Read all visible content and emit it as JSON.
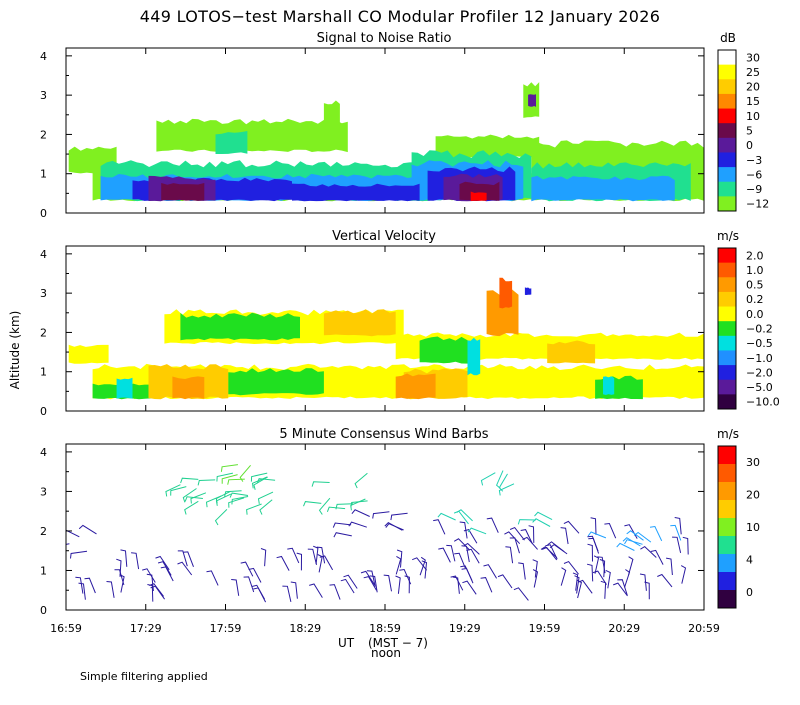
{
  "chart_data": {
    "title": "449 LOTOS−test Marshall CO Modular Profiler 12 January 2026",
    "ylabel": "Altitude (km)",
    "xlabel": "UT",
    "xlabel_local": "(MST − 7)",
    "noon_label": "noon",
    "footnote": "Simple filtering applied",
    "x_ticks": [
      "16:59",
      "17:29",
      "17:59",
      "18:29",
      "18:59",
      "19:29",
      "19:59",
      "20:29",
      "20:59"
    ],
    "x_range_hours": [
      16.983,
      20.983
    ],
    "y_ticks": [
      "0",
      "1",
      "2",
      "3",
      "4"
    ],
    "y_range_km": [
      0,
      4.2
    ],
    "panels": [
      {
        "id": "snr",
        "type": "heatmap",
        "title": "Signal to Noise Ratio",
        "unit": "dB",
        "colorbar_labels": [
          "30",
          "25",
          "20",
          "15",
          "10",
          "5",
          "0",
          "−3",
          "−6",
          "−9",
          "−12"
        ],
        "colorbar_colors": [
          "#ffffff",
          "#ffff00",
          "#ffcc00",
          "#ff8800",
          "#ff0000",
          "#6a0a4a",
          "#5a1a9a",
          "#2020e0",
          "#1fa0ff",
          "#20e090",
          "#80f020"
        ],
        "levels": [
          {
            "color": "#80f020",
            "regions": [
              {
                "x0": 17.0,
                "x1": 17.3,
                "y0": 1.0,
                "y1": 1.7
              },
              {
                "x0": 17.15,
                "x1": 20.98,
                "y0": 0.3,
                "y1": 1.1
              },
              {
                "x0": 17.55,
                "x1": 18.75,
                "y0": 1.55,
                "y1": 2.4
              },
              {
                "x0": 19.3,
                "x1": 19.95,
                "y0": 1.4,
                "y1": 2.0
              },
              {
                "x0": 19.9,
                "x1": 20.98,
                "y0": 0.8,
                "y1": 1.85
              },
              {
                "x0": 19.85,
                "x1": 19.95,
                "y0": 2.4,
                "y1": 3.4
              },
              {
                "x0": 18.6,
                "x1": 18.7,
                "y0": 2.1,
                "y1": 2.9
              }
            ]
          },
          {
            "color": "#20e090",
            "regions": [
              {
                "x0": 17.2,
                "x1": 19.25,
                "y0": 0.3,
                "y1": 1.35
              },
              {
                "x0": 19.15,
                "x1": 19.9,
                "y0": 0.3,
                "y1": 1.6
              },
              {
                "x0": 19.9,
                "x1": 20.9,
                "y0": 0.3,
                "y1": 1.3
              },
              {
                "x0": 17.92,
                "x1": 18.12,
                "y0": 1.5,
                "y1": 2.1
              }
            ]
          },
          {
            "color": "#1fa0ff",
            "regions": [
              {
                "x0": 17.2,
                "x1": 19.2,
                "y0": 0.3,
                "y1": 1.0
              },
              {
                "x0": 19.15,
                "x1": 19.85,
                "y0": 0.3,
                "y1": 1.35
              },
              {
                "x0": 19.9,
                "x1": 20.8,
                "y0": 0.3,
                "y1": 0.95
              }
            ]
          },
          {
            "color": "#2020e0",
            "regions": [
              {
                "x0": 17.4,
                "x1": 18.4,
                "y0": 0.3,
                "y1": 0.9
              },
              {
                "x0": 18.4,
                "x1": 19.2,
                "y0": 0.3,
                "y1": 0.75
              },
              {
                "x0": 19.25,
                "x1": 19.8,
                "y0": 0.3,
                "y1": 1.2
              }
            ]
          },
          {
            "color": "#5a1a9a",
            "regions": [
              {
                "x0": 17.5,
                "x1": 17.92,
                "y0": 0.3,
                "y1": 0.95
              },
              {
                "x0": 19.35,
                "x1": 19.72,
                "y0": 0.3,
                "y1": 1.0
              },
              {
                "x0": 19.88,
                "x1": 19.93,
                "y0": 2.7,
                "y1": 3.05
              }
            ]
          },
          {
            "color": "#6a0a4a",
            "regions": [
              {
                "x0": 17.58,
                "x1": 17.85,
                "y0": 0.3,
                "y1": 0.8
              },
              {
                "x0": 19.45,
                "x1": 19.7,
                "y0": 0.3,
                "y1": 0.8
              }
            ]
          },
          {
            "color": "#ff0000",
            "regions": [
              {
                "x0": 19.52,
                "x1": 19.62,
                "y0": 0.3,
                "y1": 0.55
              }
            ]
          }
        ]
      },
      {
        "id": "vv",
        "type": "heatmap",
        "title": "Vertical Velocity",
        "unit": "m/s",
        "colorbar_labels": [
          "2.0",
          "1.0",
          "0.5",
          "0.2",
          "0.0",
          "−0.2",
          "−0.5",
          "−1.0",
          "−2.0",
          "−5.0",
          "−10.0"
        ],
        "colorbar_colors": [
          "#ff0000",
          "#ff5a00",
          "#ff9a00",
          "#ffcc00",
          "#ffff00",
          "#20e020",
          "#00e0e0",
          "#2090ff",
          "#2020e0",
          "#5a1a9a",
          "#300040"
        ],
        "levels": [
          {
            "color": "#ffff00",
            "regions": [
              {
                "x0": 17.0,
                "x1": 17.25,
                "y0": 1.2,
                "y1": 1.7
              },
              {
                "x0": 17.15,
                "x1": 20.98,
                "y0": 0.3,
                "y1": 1.2
              },
              {
                "x0": 17.6,
                "x1": 19.1,
                "y0": 1.7,
                "y1": 2.6
              },
              {
                "x0": 19.05,
                "x1": 20.98,
                "y0": 1.3,
                "y1": 2.0
              }
            ]
          },
          {
            "color": "#20e020",
            "regions": [
              {
                "x0": 17.15,
                "x1": 17.55,
                "y0": 0.3,
                "y1": 0.7
              },
              {
                "x0": 18.0,
                "x1": 18.6,
                "y0": 0.4,
                "y1": 1.1
              },
              {
                "x0": 17.7,
                "x1": 18.45,
                "y0": 1.8,
                "y1": 2.5
              },
              {
                "x0": 20.3,
                "x1": 20.6,
                "y0": 0.3,
                "y1": 0.9
              },
              {
                "x0": 19.2,
                "x1": 19.5,
                "y0": 1.2,
                "y1": 1.9
              }
            ]
          },
          {
            "color": "#00e0e0",
            "regions": [
              {
                "x0": 17.3,
                "x1": 17.4,
                "y0": 0.3,
                "y1": 0.9
              },
              {
                "x0": 19.5,
                "x1": 19.58,
                "y0": 0.9,
                "y1": 1.9
              },
              {
                "x0": 20.35,
                "x1": 20.42,
                "y0": 0.4,
                "y1": 0.9
              }
            ]
          },
          {
            "color": "#ffcc00",
            "regions": [
              {
                "x0": 17.5,
                "x1": 18.0,
                "y0": 0.3,
                "y1": 1.2
              },
              {
                "x0": 18.6,
                "x1": 19.05,
                "y0": 1.9,
                "y1": 2.6
              },
              {
                "x0": 19.1,
                "x1": 19.5,
                "y0": 0.3,
                "y1": 1.1
              },
              {
                "x0": 20.0,
                "x1": 20.3,
                "y0": 1.2,
                "y1": 1.8
              }
            ]
          },
          {
            "color": "#ff9a00",
            "regions": [
              {
                "x0": 19.05,
                "x1": 19.3,
                "y0": 0.3,
                "y1": 1.0
              },
              {
                "x0": 19.62,
                "x1": 19.82,
                "y0": 1.9,
                "y1": 3.1
              },
              {
                "x0": 17.65,
                "x1": 17.85,
                "y0": 0.3,
                "y1": 0.9
              }
            ]
          },
          {
            "color": "#ff5a00",
            "regions": [
              {
                "x0": 19.7,
                "x1": 19.78,
                "y0": 2.6,
                "y1": 3.4
              }
            ]
          },
          {
            "color": "#2020e0",
            "regions": [
              {
                "x0": 19.86,
                "x1": 19.9,
                "y0": 2.95,
                "y1": 3.15
              }
            ]
          }
        ]
      },
      {
        "id": "wind",
        "type": "scatter",
        "title": "5 Minute Consensus Wind Barbs",
        "unit": "m/s",
        "colorbar_labels": [
          "30",
          "20",
          "10",
          "4",
          "0"
        ],
        "colorbar_colors": [
          "#ff0000",
          "#ff5a00",
          "#ff9a00",
          "#ffcc00",
          "#80f020",
          "#20e090",
          "#1fa0ff",
          "#2020e0",
          "#300040"
        ],
        "barb_groups": [
          {
            "x0": 17.05,
            "x1": 20.9,
            "y0": 0.2,
            "y1": 1.2,
            "color": "#2a1aa0",
            "dir_deg": 100
          },
          {
            "x0": 19.25,
            "x1": 20.9,
            "y0": 1.2,
            "y1": 2.0,
            "color": "#2a1aa0",
            "dir_deg": 120
          },
          {
            "x0": 20.2,
            "x1": 20.9,
            "y0": 1.5,
            "y1": 2.0,
            "color": "#1fa0ff",
            "dir_deg": 140
          },
          {
            "x0": 19.4,
            "x1": 20.1,
            "y0": 1.9,
            "y1": 2.3,
            "color": "#20d0b0",
            "dir_deg": 150
          },
          {
            "x0": 17.6,
            "x1": 18.9,
            "y0": 2.5,
            "y1": 3.5,
            "color": "#20d090",
            "dir_deg": 200
          },
          {
            "x0": 18.05,
            "x1": 18.15,
            "y0": 3.1,
            "y1": 3.8,
            "color": "#60e030",
            "dir_deg": 210
          },
          {
            "x0": 19.55,
            "x1": 19.8,
            "y0": 2.9,
            "y1": 3.6,
            "color": "#20d0b0",
            "dir_deg": 220
          },
          {
            "x0": 17.0,
            "x1": 17.2,
            "y0": 1.4,
            "y1": 2.2,
            "color": "#2a1aa0",
            "dir_deg": 170
          },
          {
            "x0": 18.7,
            "x1": 19.15,
            "y0": 1.8,
            "y1": 2.5,
            "color": "#2a1aa0",
            "dir_deg": 160
          }
        ]
      }
    ]
  }
}
